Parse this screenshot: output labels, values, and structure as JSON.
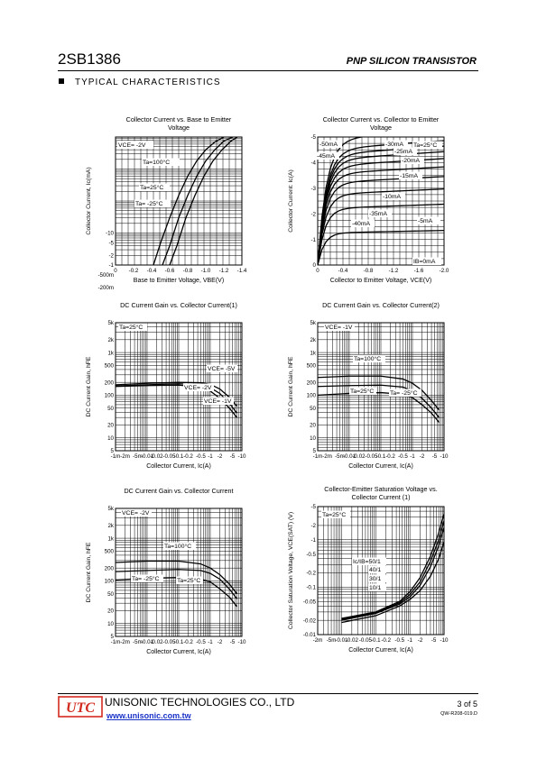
{
  "header": {
    "part_number": "2SB1386",
    "description": "PNP SILICON TRANSISTOR",
    "section": "TYPICAL CHARACTERISTICS"
  },
  "footer": {
    "logo_text": "UTC",
    "company": "UNISONIC TECHNOLOGIES CO., LTD",
    "url": "www.unisonic.com.tw",
    "page": "3 of 5",
    "doc_number": "QW-R208-019.D",
    "colors": {
      "logo": "#d32a1e",
      "link": "#1a32c8"
    }
  },
  "chart_data": [
    {
      "id": "ic-vbe",
      "type": "line",
      "title": [
        "Collector Current vs. Base to Emitter",
        "Voltage"
      ],
      "xlabel": "Base to Emitter Voltage, VBE(V)",
      "ylabel": "Collector Current, Ic(mA)",
      "x_scale": "linear",
      "y_scale": "log",
      "xlim": [
        0,
        -1.4
      ],
      "ylim": [
        -1,
        -10000
      ],
      "xticks": [
        "0",
        "-0.2",
        "-0.4",
        "-0.6",
        "-0.8",
        "-1.0",
        "-1.2",
        "-1.4"
      ],
      "yticks": [
        "-1m",
        "-2m",
        "-5m",
        "-10m",
        "-20m",
        "-50m",
        "-100m",
        "-200m",
        "-500m",
        "-1",
        "-2",
        "-5",
        "-10"
      ],
      "annotations": [
        "VCE= -2V",
        "Ta=100°C",
        "Ta=25°C",
        "Ta= -25°C"
      ],
      "series": [
        {
          "name": "Ta=100°C",
          "x": [
            -0.42,
            -0.5,
            -0.6,
            -0.7,
            -0.8,
            -0.9,
            -1.0,
            -1.1,
            -1.2
          ],
          "y": [
            -1,
            -5,
            -30,
            -150,
            -600,
            -1800,
            -4000,
            -7000,
            -10000
          ]
        },
        {
          "name": "Ta=25°C",
          "x": [
            -0.52,
            -0.6,
            -0.7,
            -0.8,
            -0.9,
            -1.0,
            -1.1,
            -1.2,
            -1.3
          ],
          "y": [
            -1,
            -4,
            -30,
            -150,
            -600,
            -1800,
            -4000,
            -7500,
            -10000
          ]
        },
        {
          "name": "Ta= -25°C",
          "x": [
            -0.6,
            -0.68,
            -0.78,
            -0.88,
            -0.98,
            -1.08,
            -1.18,
            -1.28,
            -1.35
          ],
          "y": [
            -1,
            -4,
            -30,
            -150,
            -600,
            -1800,
            -4000,
            -7500,
            -10000
          ]
        }
      ]
    },
    {
      "id": "ic-vce",
      "type": "line",
      "title": [
        "Collector Current vs. Collector to Emitter",
        "Voltage"
      ],
      "xlabel": "Collector to Emitter Voltage, VCE(V)",
      "ylabel": "Collector Current: Ic(A)",
      "x_scale": "linear",
      "y_scale": "linear",
      "xlim": [
        0,
        -2.0
      ],
      "ylim": [
        0,
        -5
      ],
      "xticks": [
        "0",
        "-0.4",
        "-0.8",
        "-1.2",
        "-1.6",
        "-2.0"
      ],
      "yticks": [
        "0",
        "-1",
        "-2",
        "-3",
        "-4",
        "-5"
      ],
      "annotations": [
        "Ta=25°C",
        "IB=0mA"
      ],
      "series": [
        {
          "name": "-50mA",
          "sat": -4.9
        },
        {
          "name": "-45mA",
          "sat": -4.5
        },
        {
          "name": "-40mA",
          "sat": -4.3
        },
        {
          "name": "-35mA",
          "sat": -4.1
        },
        {
          "name": "-30mA",
          "sat": -3.85
        },
        {
          "name": "-25mA",
          "sat": -3.55
        },
        {
          "name": "-20mA",
          "sat": -3.2
        },
        {
          "name": "-15mA",
          "sat": -2.75
        },
        {
          "name": "-10mA",
          "sat": -2.2
        },
        {
          "name": "-5mA",
          "sat": -1.25
        }
      ]
    },
    {
      "id": "hfe-1",
      "type": "line",
      "title": [
        "DC Current Gain vs. Collector Current(1)"
      ],
      "xlabel": "Collector Current, Ic(A)",
      "ylabel": "DC Current Gain, hFE",
      "x_scale": "log",
      "y_scale": "log",
      "xlim": [
        -0.001,
        -10
      ],
      "ylim": [
        5,
        5000
      ],
      "xticks": [
        "-1m",
        "-2m",
        "-5m",
        "-0.01",
        "-0.02",
        "-0.05",
        "-0.1",
        "-0.2",
        "-0.5",
        "-1",
        "-2",
        "-5",
        "-10"
      ],
      "yticks": [
        "5",
        "10",
        "20",
        "50",
        "100",
        "200",
        "500",
        "1k",
        "2k",
        "5k"
      ],
      "annotations": [
        "Ta=25°C",
        "VCE= -5V",
        "VCE= -2V",
        "VCE= -1V"
      ],
      "series": [
        {
          "name": "VCE= -5V",
          "x": [
            -0.001,
            -0.01,
            -0.1,
            -0.5,
            -1,
            -2,
            -4,
            -7
          ],
          "y": [
            175,
            190,
            200,
            195,
            180,
            140,
            90,
            55
          ]
        },
        {
          "name": "VCE= -2V",
          "x": [
            -0.001,
            -0.01,
            -0.1,
            -0.5,
            -1,
            -2,
            -4,
            -7
          ],
          "y": [
            165,
            175,
            185,
            175,
            150,
            110,
            65,
            38
          ]
        },
        {
          "name": "VCE= -1V",
          "x": [
            -0.001,
            -0.01,
            -0.1,
            -0.5,
            -1,
            -2,
            -4,
            -7
          ],
          "y": [
            160,
            168,
            172,
            155,
            125,
            85,
            50,
            30
          ]
        }
      ]
    },
    {
      "id": "hfe-2",
      "type": "line",
      "title": [
        "DC Current Gain vs. Collector Current(2)"
      ],
      "xlabel": "Collector Current, Ic(A)",
      "ylabel": "DC Current Gain, hFE",
      "x_scale": "log",
      "y_scale": "log",
      "xlim": [
        -0.001,
        -10
      ],
      "ylim": [
        5,
        5000
      ],
      "xticks": [
        "-1m",
        "-2m",
        "-5m",
        "-0.01",
        "-0.02",
        "-0.05",
        "-0.1",
        "-0.2",
        "-0.5",
        "-1",
        "-2",
        "-5",
        "-10"
      ],
      "yticks": [
        "5",
        "10",
        "20",
        "50",
        "100",
        "200",
        "500",
        "1k",
        "2k",
        "5k"
      ],
      "annotations": [
        "VCE= -1V",
        "Ta=100°C",
        "Ta=25°C",
        "Ta= -25°C"
      ],
      "series": [
        {
          "name": "Ta=100°C",
          "x": [
            -0.001,
            -0.01,
            -0.1,
            -0.5,
            -1,
            -2,
            -4,
            -7
          ],
          "y": [
            260,
            280,
            280,
            240,
            190,
            130,
            75,
            45
          ]
        },
        {
          "name": "Ta=25°C",
          "x": [
            -0.001,
            -0.01,
            -0.1,
            -0.5,
            -1,
            -2,
            -4,
            -7
          ],
          "y": [
            160,
            168,
            172,
            155,
            125,
            85,
            50,
            30
          ]
        },
        {
          "name": "Ta= -25°C",
          "x": [
            -0.001,
            -0.01,
            -0.1,
            -0.5,
            -1,
            -2,
            -4,
            -7
          ],
          "y": [
            100,
            110,
            115,
            105,
            88,
            60,
            38,
            23
          ]
        }
      ]
    },
    {
      "id": "hfe-3",
      "type": "line",
      "title": [
        "DC Current Gain vs. Collector Current"
      ],
      "xlabel": "Collector Current, Ic(A)",
      "ylabel": "DC Current Gain, hFE",
      "x_scale": "log",
      "y_scale": "log",
      "xlim": [
        -0.001,
        -10
      ],
      "ylim": [
        5,
        5000
      ],
      "xticks": [
        "-1m",
        "-2m",
        "-5m",
        "-0.01",
        "-0.02",
        "-0.05",
        "-0.1",
        "-0.2",
        "-0.5",
        "-1",
        "-2",
        "-5",
        "-10"
      ],
      "yticks": [
        "5",
        "10",
        "20",
        "50",
        "100",
        "200",
        "500",
        "1k",
        "2k",
        "5k"
      ],
      "annotations": [
        "VCE= -2V",
        "Ta=100°C",
        "Ta= -25°C",
        "Ta=25°C"
      ],
      "series": [
        {
          "name": "Ta=100°C",
          "x": [
            -0.001,
            -0.01,
            -0.1,
            -0.5,
            -1,
            -2,
            -4,
            -7
          ],
          "y": [
            270,
            290,
            290,
            250,
            200,
            140,
            85,
            50
          ]
        },
        {
          "name": "Ta=25°C",
          "x": [
            -0.001,
            -0.01,
            -0.1,
            -0.5,
            -1,
            -2,
            -4,
            -7
          ],
          "y": [
            165,
            175,
            185,
            175,
            150,
            110,
            65,
            38
          ]
        },
        {
          "name": "Ta= -25°C",
          "x": [
            -0.001,
            -0.01,
            -0.1,
            -0.5,
            -1,
            -2,
            -4,
            -7
          ],
          "y": [
            105,
            115,
            120,
            110,
            95,
            65,
            42,
            25
          ]
        }
      ]
    },
    {
      "id": "vcesat",
      "type": "line",
      "title": [
        "Collector-Emitter Saturation Voltage vs.",
        "Collector Current (1)"
      ],
      "xlabel": "Collector Current, Ic(A)",
      "ylabel": "Collector  Saturation Voltage, VCE(SAT) (V)",
      "x_scale": "log",
      "y_scale": "log",
      "xlim": [
        -0.002,
        -10
      ],
      "ylim": [
        -0.01,
        -5
      ],
      "xticks": [
        "-2m",
        "-5m",
        "-0.01",
        "-0.02",
        "-0.05",
        "-0.1",
        "-0.2",
        "-0.5",
        "-1",
        "-2",
        "-5",
        "-10"
      ],
      "yticks": [
        "-0.01",
        "-0.02",
        "-0.05",
        "-0.1",
        "-0.2",
        "-0.5",
        "-1",
        "-2",
        "-5"
      ],
      "annotations": [
        "Ta=25°C",
        "Ic/IB=50/1",
        "40/1",
        "30/1",
        "10/1"
      ],
      "series": [
        {
          "name": "50/1",
          "x": [
            -0.01,
            -0.1,
            -0.5,
            -1,
            -2,
            -4,
            -7,
            -10
          ],
          "y": [
            -0.022,
            -0.03,
            -0.05,
            -0.08,
            -0.16,
            -0.45,
            -1.4,
            -3.5
          ]
        },
        {
          "name": "40/1",
          "x": [
            -0.01,
            -0.1,
            -0.5,
            -1,
            -2,
            -4,
            -7,
            -10
          ],
          "y": [
            -0.021,
            -0.029,
            -0.047,
            -0.07,
            -0.13,
            -0.35,
            -1.0,
            -2.5
          ]
        },
        {
          "name": "30/1",
          "x": [
            -0.01,
            -0.1,
            -0.5,
            -1,
            -2,
            -4,
            -7,
            -10
          ],
          "y": [
            -0.02,
            -0.028,
            -0.044,
            -0.062,
            -0.11,
            -0.27,
            -0.75,
            -1.8
          ]
        },
        {
          "name": "10/1",
          "x": [
            -0.01,
            -0.1,
            -0.5,
            -1,
            -2,
            -4,
            -7,
            -10
          ],
          "y": [
            -0.018,
            -0.025,
            -0.04,
            -0.055,
            -0.085,
            -0.17,
            -0.4,
            -0.9
          ]
        }
      ]
    }
  ]
}
